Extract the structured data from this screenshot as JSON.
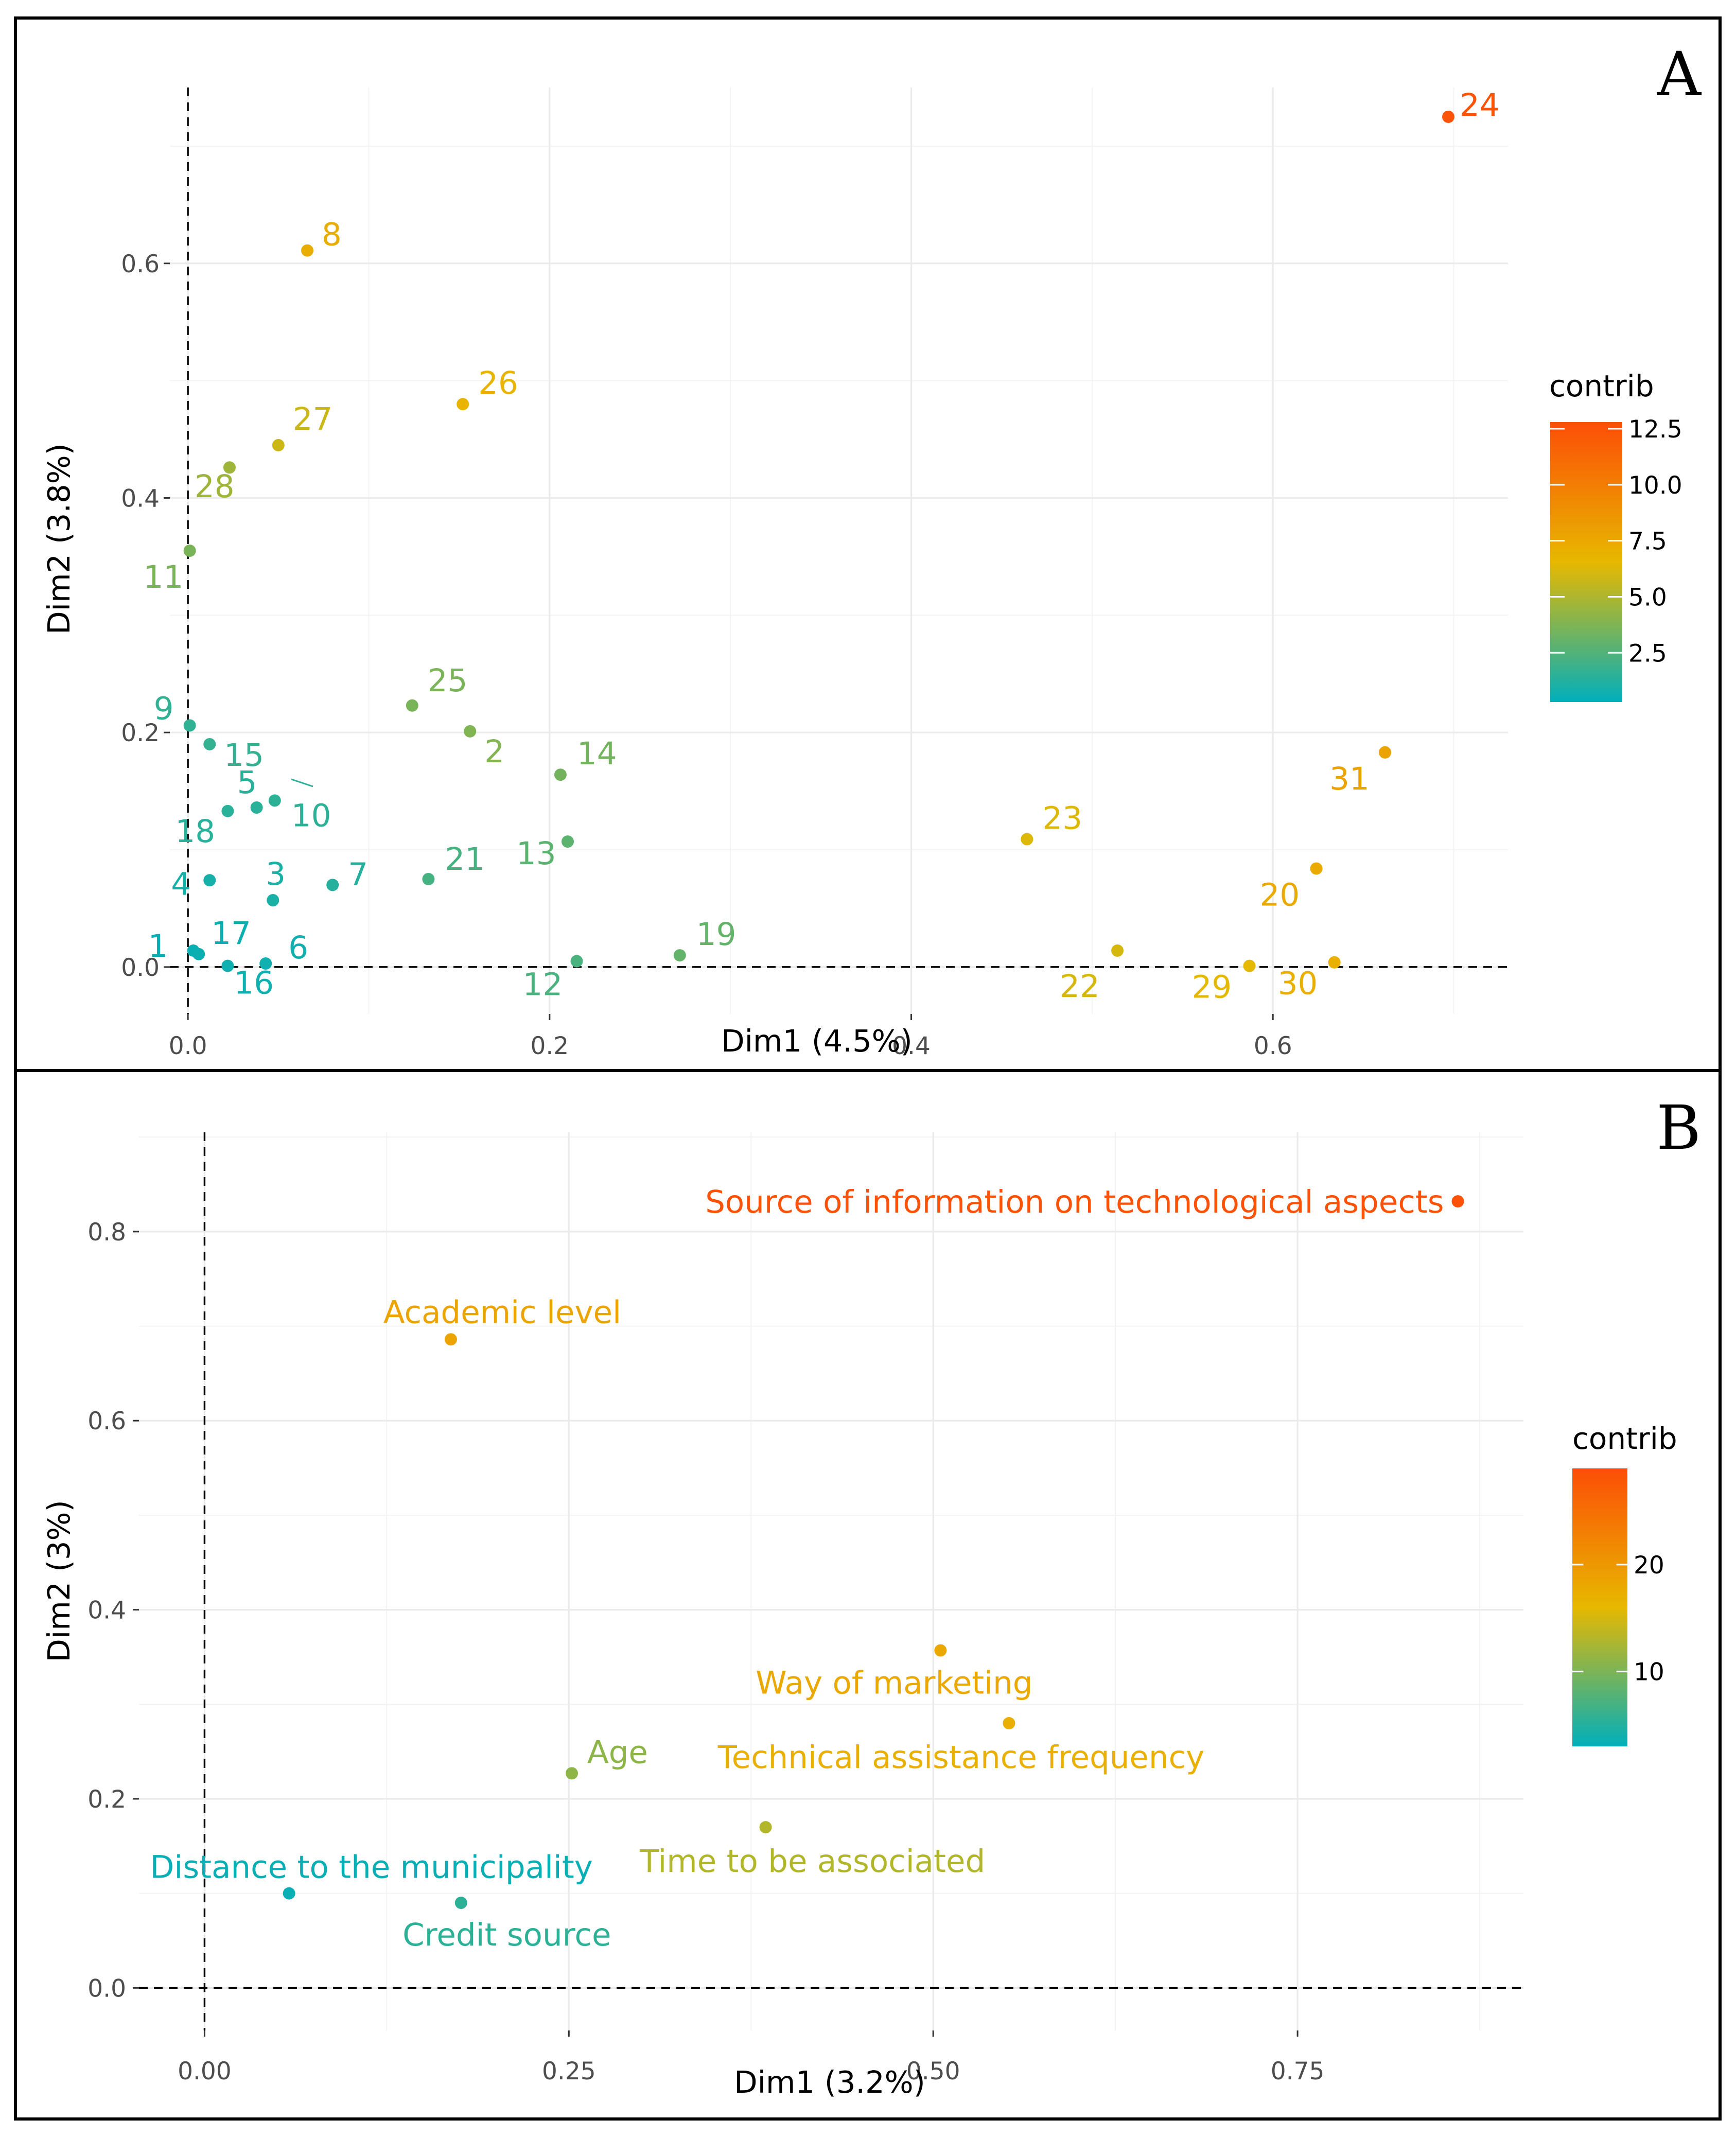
{
  "figure": {
    "panels": [
      "A",
      "B"
    ]
  },
  "chart_data": [
    {
      "panel": "A",
      "type": "scatter",
      "title": "",
      "xlabel": "Dim1 (4.5%)",
      "ylabel": "Dim2 (3.8%)",
      "xlim": [
        -0.01,
        0.73
      ],
      "ylim": [
        -0.04,
        0.75
      ],
      "xticks": [
        0.0,
        0.2,
        0.4,
        0.6
      ],
      "xtick_labels": [
        "0.0",
        "0.2",
        "0.4",
        "0.6"
      ],
      "yticks": [
        0.0,
        0.2,
        0.4,
        0.6
      ],
      "ytick_labels": [
        "0.0",
        "0.2",
        "0.4",
        "0.6"
      ],
      "grid": true,
      "reference_lines": {
        "x": 0,
        "y": 0,
        "style": "dashed"
      },
      "legend": {
        "title": "contrib",
        "type": "colorbar",
        "placement": "right",
        "range": [
          0.3,
          12.8
        ],
        "ticks": [
          2.5,
          5.0,
          7.5,
          10.0,
          12.5
        ],
        "tick_labels": [
          "2.5",
          "5.0",
          "7.5",
          "10.0",
          "12.5"
        ],
        "colors": [
          "#00AFBB",
          "#E7B800",
          "#FC4E07"
        ]
      },
      "points": [
        {
          "label": "24",
          "x": 0.697,
          "y": 0.725,
          "contrib": 12.5
        },
        {
          "label": "8",
          "x": 0.066,
          "y": 0.611,
          "contrib": 7.2
        },
        {
          "label": "26",
          "x": 0.152,
          "y": 0.48,
          "contrib": 6.8
        },
        {
          "label": "27",
          "x": 0.05,
          "y": 0.445,
          "contrib": 5.8
        },
        {
          "label": "28",
          "x": 0.023,
          "y": 0.426,
          "contrib": 4.6
        },
        {
          "label": "11",
          "x": 0.001,
          "y": 0.355,
          "contrib": 3.6
        },
        {
          "label": "25",
          "x": 0.124,
          "y": 0.223,
          "contrib": 3.6
        },
        {
          "label": "2",
          "x": 0.156,
          "y": 0.201,
          "contrib": 3.8
        },
        {
          "label": "14",
          "x": 0.206,
          "y": 0.164,
          "contrib": 3.4
        },
        {
          "label": "9",
          "x": 0.001,
          "y": 0.206,
          "contrib": 1.6
        },
        {
          "label": "15",
          "x": 0.012,
          "y": 0.19,
          "contrib": 1.7
        },
        {
          "label": "18",
          "x": 0.022,
          "y": 0.133,
          "contrib": 1.4
        },
        {
          "label": "5",
          "x": 0.038,
          "y": 0.136,
          "contrib": 1.4
        },
        {
          "label": "10",
          "x": 0.048,
          "y": 0.142,
          "contrib": 1.5
        },
        {
          "label": "13",
          "x": 0.21,
          "y": 0.107,
          "contrib": 2.8
        },
        {
          "label": "21",
          "x": 0.133,
          "y": 0.075,
          "contrib": 2.2
        },
        {
          "label": "7",
          "x": 0.08,
          "y": 0.07,
          "contrib": 1.3
        },
        {
          "label": "4",
          "x": 0.012,
          "y": 0.074,
          "contrib": 0.9
        },
        {
          "label": "3",
          "x": 0.047,
          "y": 0.057,
          "contrib": 1.0
        },
        {
          "label": "23",
          "x": 0.464,
          "y": 0.109,
          "contrib": 6.3
        },
        {
          "label": "31",
          "x": 0.662,
          "y": 0.183,
          "contrib": 7.8
        },
        {
          "label": "20",
          "x": 0.624,
          "y": 0.084,
          "contrib": 7.4
        },
        {
          "label": "22",
          "x": 0.514,
          "y": 0.014,
          "contrib": 6.1
        },
        {
          "label": "29",
          "x": 0.587,
          "y": 0.001,
          "contrib": 6.5
        },
        {
          "label": "30",
          "x": 0.634,
          "y": 0.004,
          "contrib": 7.1
        },
        {
          "label": "19",
          "x": 0.272,
          "y": 0.01,
          "contrib": 3.0
        },
        {
          "label": "12",
          "x": 0.215,
          "y": 0.005,
          "contrib": 2.3
        },
        {
          "label": "1",
          "x": 0.003,
          "y": 0.014,
          "contrib": 0.5
        },
        {
          "label": "17",
          "x": 0.006,
          "y": 0.011,
          "contrib": 0.6
        },
        {
          "label": "16",
          "x": 0.022,
          "y": 0.001,
          "contrib": 0.7
        },
        {
          "label": "6",
          "x": 0.043,
          "y": 0.003,
          "contrib": 0.7
        }
      ]
    },
    {
      "panel": "B",
      "type": "scatter",
      "title": "",
      "xlabel": "Dim1 (3.2%)",
      "ylabel": "Dim2 (3%)",
      "xlim": [
        -0.045,
        0.905
      ],
      "ylim": [
        -0.045,
        0.905
      ],
      "xticks": [
        0.0,
        0.25,
        0.5,
        0.75
      ],
      "xtick_labels": [
        "0.00",
        "0.25",
        "0.50",
        "0.75"
      ],
      "yticks": [
        0.0,
        0.2,
        0.4,
        0.6,
        0.8
      ],
      "ytick_labels": [
        "0.0",
        "0.2",
        "0.4",
        "0.6",
        "0.8"
      ],
      "grid": true,
      "reference_lines": {
        "x": 0,
        "y": 0,
        "style": "dashed"
      },
      "legend": {
        "title": "contrib",
        "type": "colorbar",
        "placement": "right",
        "range": [
          3,
          29
        ],
        "ticks": [
          10,
          20
        ],
        "tick_labels": [
          "10",
          "20"
        ],
        "colors": [
          "#00AFBB",
          "#E7B800",
          "#FC4E07"
        ]
      },
      "points": [
        {
          "label": "Source of information on technological aspects",
          "x": 0.86,
          "y": 0.832,
          "contrib": 28.5
        },
        {
          "label": "Academic level",
          "x": 0.169,
          "y": 0.686,
          "contrib": 18.5
        },
        {
          "label": "Way of marketing",
          "x": 0.505,
          "y": 0.357,
          "contrib": 18.0
        },
        {
          "label": "Technical assistance frequency",
          "x": 0.552,
          "y": 0.28,
          "contrib": 17.0
        },
        {
          "label": "Age",
          "x": 0.252,
          "y": 0.227,
          "contrib": 11.0
        },
        {
          "label": "Time to be associated",
          "x": 0.385,
          "y": 0.17,
          "contrib": 13.0
        },
        {
          "label": "Distance to the municipality",
          "x": 0.058,
          "y": 0.1,
          "contrib": 3.5
        },
        {
          "label": "Credit source",
          "x": 0.176,
          "y": 0.09,
          "contrib": 5.5
        }
      ]
    }
  ]
}
